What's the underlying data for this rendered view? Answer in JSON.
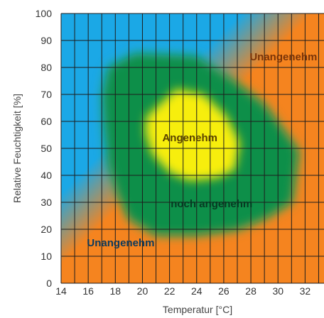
{
  "chart_data": {
    "type": "heatmap",
    "xlabel": "Temperatur [°C]",
    "ylabel": "Relative Feuchtigkeit [%]",
    "xlim": [
      14,
      33.5
    ],
    "ylim": [
      0,
      100
    ],
    "x_ticks": [
      14,
      16,
      18,
      20,
      22,
      24,
      26,
      28,
      30,
      32
    ],
    "y_ticks": [
      0,
      10,
      20,
      30,
      40,
      50,
      60,
      70,
      80,
      90,
      100
    ],
    "grid": true,
    "regions": [
      {
        "name": "Unangenehm",
        "color": "#f5841f",
        "position": "top-right"
      },
      {
        "name": "noch angenehm",
        "color": "#0a8f4a"
      },
      {
        "name": "Angenehm",
        "color": "#f7ee10"
      },
      {
        "name": "Unangenehm",
        "color": "#1ba8e6",
        "position": "bottom-left"
      }
    ],
    "zones": {
      "noch_angenehm_outline": [
        [
          17.5,
          80
        ],
        [
          19.5,
          85
        ],
        [
          24,
          84
        ],
        [
          27,
          74
        ],
        [
          29,
          66
        ],
        [
          31.5,
          49
        ],
        [
          31,
          30
        ],
        [
          29,
          24
        ],
        [
          27,
          20
        ],
        [
          24,
          18
        ],
        [
          21,
          18
        ],
        [
          19,
          24
        ],
        [
          18.2,
          33
        ],
        [
          17.5,
          44
        ],
        [
          17.2,
          60
        ],
        [
          17.1,
          70
        ]
      ],
      "angenehm_outline": [
        [
          21,
          65
        ],
        [
          22.5,
          72
        ],
        [
          24.5,
          70
        ],
        [
          26.2,
          62
        ],
        [
          27.2,
          52
        ],
        [
          26.8,
          42
        ],
        [
          25.5,
          39
        ],
        [
          23.5,
          38
        ],
        [
          22,
          41
        ],
        [
          20.7,
          48
        ],
        [
          20.2,
          56
        ],
        [
          20.3,
          62
        ]
      ]
    },
    "labels": [
      {
        "text": "Unangenehm",
        "x": 30.4,
        "y": 84,
        "color": "#7a3408"
      },
      {
        "text": "Angenehm",
        "x": 23.5,
        "y": 54,
        "color": "#5a4200"
      },
      {
        "text": "noch angenehm",
        "x": 25.1,
        "y": 29.5,
        "color": "#063a22"
      },
      {
        "text": "Unangenehm",
        "x": 18.4,
        "y": 15,
        "color": "#0c3a5c"
      }
    ]
  }
}
